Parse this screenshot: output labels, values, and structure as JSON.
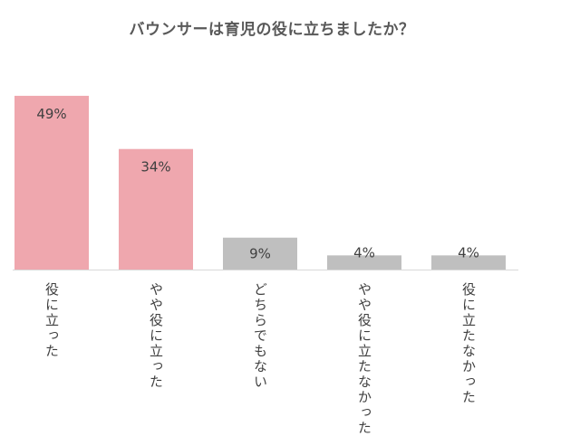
{
  "chart_data": {
    "type": "bar",
    "title": "バウンサーは育児の役に立ちましたか？",
    "categories": [
      "役に立った",
      "やや役に立った",
      "どちらでもない",
      "やや役に立たなかった",
      "役に立たなかった"
    ],
    "values": [
      49,
      34,
      9,
      4,
      4
    ],
    "value_labels": [
      "49%",
      "34%",
      "9%",
      "4%",
      "4%"
    ],
    "ylim": [
      0,
      50
    ],
    "xlabel": "",
    "ylabel": "",
    "grid": false,
    "legend": "none",
    "colors": [
      "#efa7ae",
      "#efa7ae",
      "#bfbfbf",
      "#bfbfbf",
      "#bfbfbf"
    ],
    "baseline_color": "#d9d9d9"
  }
}
